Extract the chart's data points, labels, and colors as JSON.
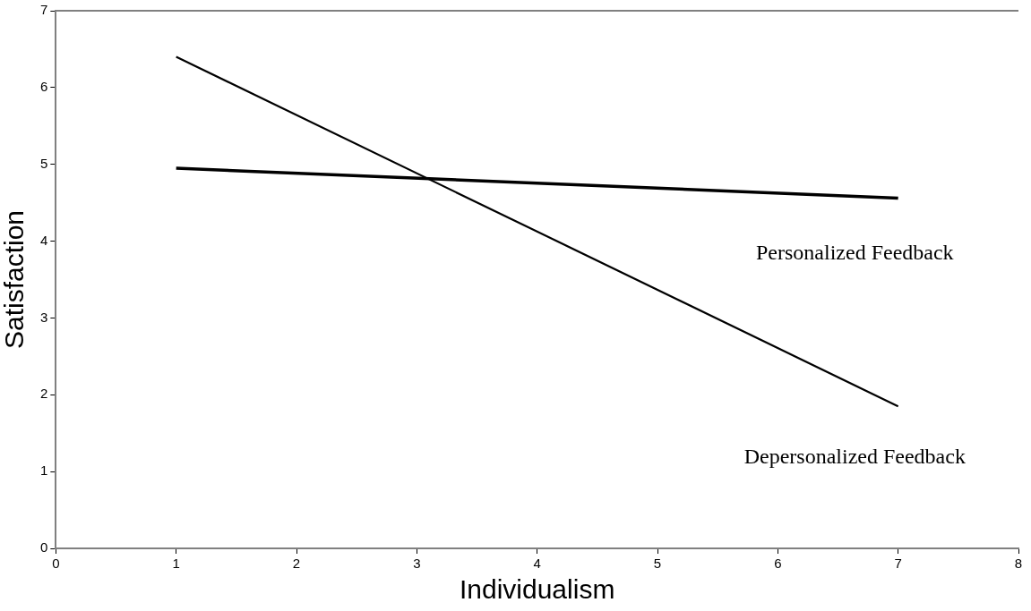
{
  "chart_data": {
    "type": "line",
    "xlabel": "Individualism",
    "ylabel": "Satisfaction",
    "xlim": [
      0,
      8
    ],
    "xticks": [
      0,
      1,
      2,
      3,
      4,
      5,
      6,
      7,
      8
    ],
    "ylim": [
      0,
      7
    ],
    "yticks": [
      0,
      1,
      2,
      3,
      4,
      5,
      6,
      7
    ],
    "x": [
      1,
      7
    ],
    "grid": false,
    "legend": false,
    "marker": "none",
    "line_style": "solid",
    "series": [
      {
        "name": "Personalized Feedback",
        "color": "#000000",
        "values": [
          4.95,
          4.56
        ]
      },
      {
        "name": "Depersonalized Feedback",
        "color": "#000000",
        "values": [
          6.4,
          1.85
        ]
      }
    ]
  }
}
